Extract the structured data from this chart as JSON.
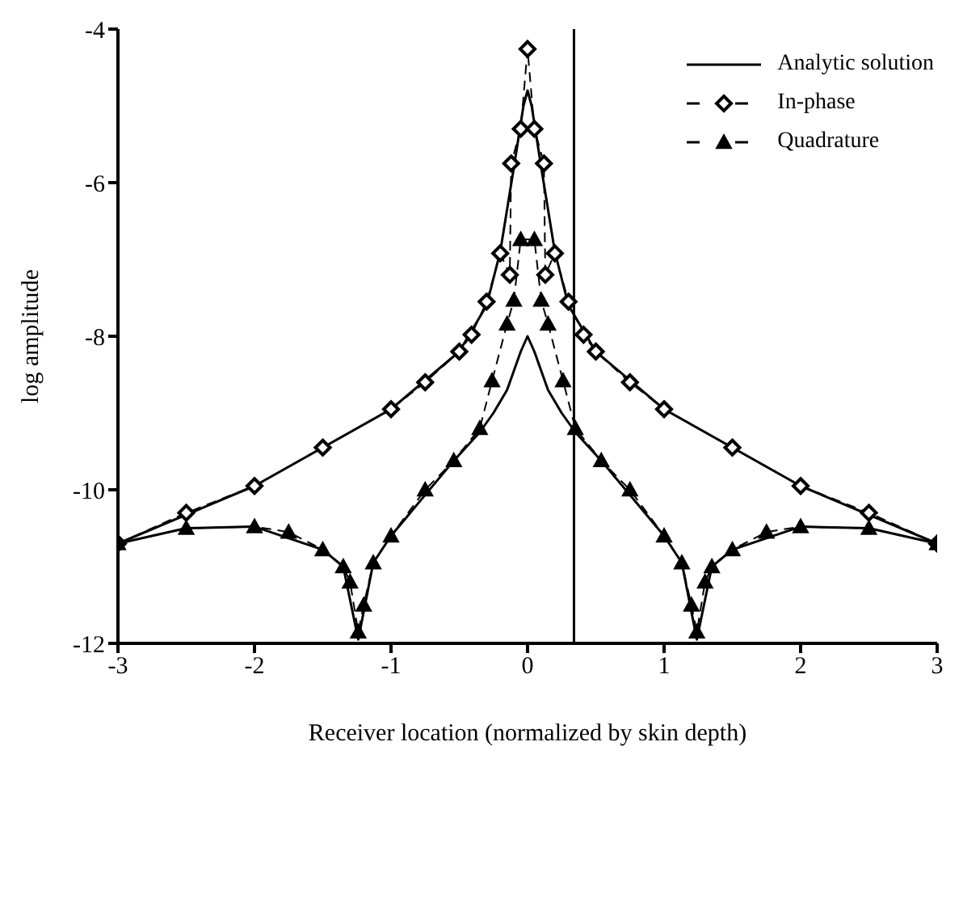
{
  "chart_data": {
    "type": "line",
    "xlabel": "Receiver location (normalized by skin depth)",
    "ylabel": "log amplitude",
    "xlim": [
      -3,
      3
    ],
    "xticks": [
      -3,
      -2,
      -1,
      0,
      1,
      2,
      3
    ],
    "ylim": [
      -12,
      -4
    ],
    "yticks": [
      -12,
      -10,
      -8,
      -6,
      -4
    ],
    "grid": false,
    "legend": "top right",
    "ref_lines": [
      {
        "axis": "x",
        "value": 0.34,
        "color": "#000000"
      }
    ],
    "series": [
      {
        "name": "Analytic solution",
        "color": "#000000",
        "marker": "none",
        "line_style": "solid",
        "x": [
          -3,
          -2,
          -1,
          -0.5,
          -0.3,
          -0.2,
          -0.1,
          -0.03,
          0,
          0.03,
          0.1,
          0.2,
          0.3,
          0.5,
          1,
          2,
          3
        ],
        "values": [
          -10.7,
          -9.95,
          -8.95,
          -8.2,
          -7.6,
          -6.9,
          -5.8,
          -5.0,
          -4.8,
          -5.0,
          -5.8,
          -6.9,
          -7.6,
          -8.2,
          -8.95,
          -9.95,
          -10.7
        ]
      },
      {
        "color": "#000000",
        "line_style": "solid",
        "x": [
          -3,
          -2.5,
          -2,
          -1.5,
          -1.35,
          -1.24,
          -1.13,
          -1,
          -0.54,
          -0.35,
          -0.25,
          -0.15,
          -0.05,
          0,
          0.05,
          0.15,
          0.25,
          0.35,
          0.54,
          1,
          1.13,
          1.24,
          1.35,
          1.5,
          2,
          2.5,
          3
        ],
        "values": [
          -10.7,
          -10.5,
          -10.48,
          -10.78,
          -11.0,
          -11.95,
          -10.95,
          -10.6,
          -9.62,
          -9.25,
          -9.0,
          -8.7,
          -8.2,
          -8.0,
          -8.2,
          -8.7,
          -9.0,
          -9.25,
          -9.62,
          -10.6,
          -10.95,
          -11.95,
          -11.0,
          -10.78,
          -10.48,
          -10.5,
          -10.7
        ]
      },
      {
        "name": "In-phase",
        "color": "#000000",
        "marker": "diamond",
        "line_style": "dashed",
        "x": [
          -3,
          -2.5,
          -2,
          -1.5,
          -1,
          -0.75,
          -0.5,
          -0.41,
          -0.3,
          -0.2,
          -0.13,
          -0.12,
          -0.05,
          0,
          0.05,
          0.12,
          0.13,
          0.2,
          0.3,
          0.41,
          0.5,
          0.75,
          1,
          1.5,
          2,
          2.5,
          3
        ],
        "values": [
          -10.7,
          -10.3,
          -9.95,
          -9.45,
          -8.95,
          -8.6,
          -8.2,
          -7.98,
          -7.55,
          -6.92,
          -7.2,
          -5.75,
          -5.3,
          -4.26,
          -5.3,
          -5.75,
          -7.2,
          -6.92,
          -7.55,
          -7.98,
          -8.2,
          -8.6,
          -8.95,
          -9.45,
          -9.95,
          -10.3,
          -10.7
        ]
      },
      {
        "name": "Quadrature",
        "color": "#000000",
        "marker": "triangle",
        "line_style": "dashed",
        "x": [
          -3,
          -2.5,
          -2,
          -1.75,
          -1.5,
          -1.35,
          -1.3,
          -1.24,
          -1.2,
          -1.13,
          -1,
          -0.75,
          -0.54,
          -0.35,
          -0.26,
          -0.15,
          -0.1,
          -0.05,
          0.05,
          0.1,
          0.15,
          0.26,
          0.35,
          0.54,
          0.75,
          1,
          1.13,
          1.2,
          1.24,
          1.3,
          1.35,
          1.5,
          1.75,
          2,
          2.5,
          3
        ],
        "values": [
          -10.7,
          -10.5,
          -10.48,
          -10.55,
          -10.78,
          -11.0,
          -11.2,
          -11.85,
          -11.5,
          -10.95,
          -10.6,
          -10.0,
          -9.62,
          -9.2,
          -8.58,
          -7.84,
          -7.53,
          -6.74,
          -6.74,
          -7.53,
          -7.84,
          -8.58,
          -9.2,
          -9.62,
          -10.0,
          -10.6,
          -10.95,
          -11.5,
          -11.85,
          -11.2,
          -11.0,
          -10.78,
          -10.55,
          -10.48,
          -10.5,
          -10.7
        ]
      }
    ]
  }
}
